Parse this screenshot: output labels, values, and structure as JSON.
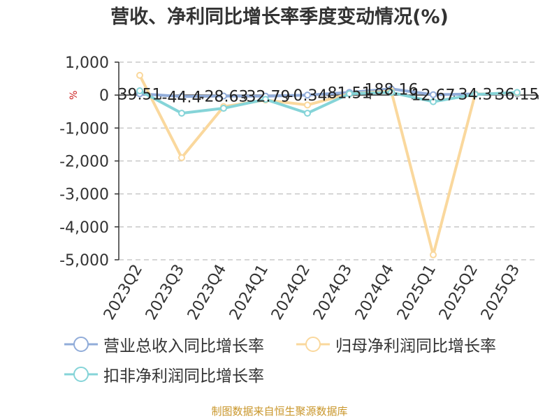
{
  "title": "营收、净利同比增长率季度变动情况(%)",
  "source": "制图数据来自恒生聚源数据库",
  "chart_data": {
    "type": "line",
    "title": "营收、净利同比增长率季度变动情况(%)",
    "ylabel": "%",
    "xlabel": "",
    "categories": [
      "2023Q2",
      "2023Q3",
      "2023Q4",
      "2024Q1",
      "2024Q2",
      "2024Q3",
      "2024Q4",
      "2025Q1",
      "2025Q2",
      "2025Q3"
    ],
    "ylim": [
      -5000,
      1000
    ],
    "yticks": [
      1000,
      0,
      -1000,
      -2000,
      -3000,
      -4000,
      -5000
    ],
    "ytick_labels": [
      "1,000",
      "0",
      "-1,000",
      "-2,000",
      "-3,000",
      "-4,000",
      "-5,000"
    ],
    "grid": true,
    "legend_position": "bottom",
    "series": [
      {
        "name": "营业总收入同比增长率",
        "color": "#91acd9",
        "values": [
          39.51,
          -44.4,
          -28.63,
          -32.79,
          -0.34,
          81.51,
          188.16,
          12.67,
          34.3,
          36.15
        ],
        "labels": [
          "39.51",
          "-44.4",
          "-28.63",
          "-32.79",
          "-0.34",
          "81.51",
          "188.16",
          "12.67",
          "34.3",
          "36.15"
        ]
      },
      {
        "name": "归母净利润同比增长率",
        "color": "#fad89d",
        "values": [
          600,
          -1900,
          -350,
          -150,
          -300,
          40,
          120,
          -4850,
          30,
          60
        ]
      },
      {
        "name": "扣非净利润同比增长率",
        "color": "#85d4d8",
        "values": [
          130,
          -550,
          -400,
          -130,
          -550,
          40,
          80,
          -200,
          20,
          80
        ]
      }
    ]
  }
}
